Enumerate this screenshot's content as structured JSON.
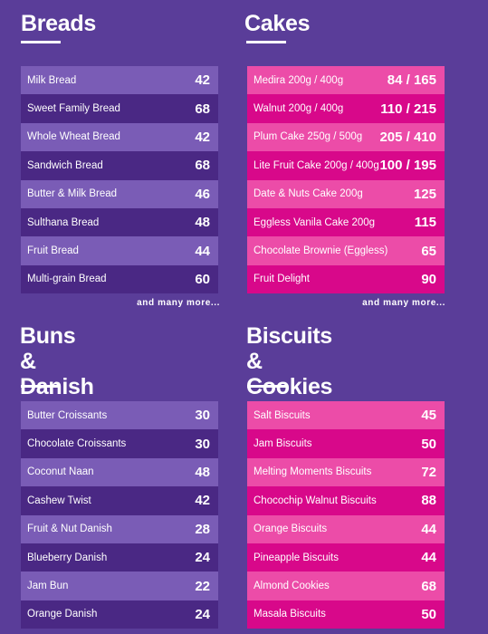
{
  "breads": {
    "title": "Breads",
    "items": [
      {
        "name": "Milk Bread",
        "price": "42"
      },
      {
        "name": "Sweet Family Bread",
        "price": "68"
      },
      {
        "name": "Whole Wheat Bread",
        "price": "42"
      },
      {
        "name": "Sandwich Bread",
        "price": "68"
      },
      {
        "name": "Butter & Milk Bread",
        "price": "46"
      },
      {
        "name": "Sulthana Bread",
        "price": "48"
      },
      {
        "name": "Fruit Bread",
        "price": "44"
      },
      {
        "name": "Multi-grain Bread",
        "price": "60"
      }
    ],
    "more": "and many more..."
  },
  "cakes": {
    "title": "Cakes",
    "items": [
      {
        "name": "Medira 200g / 400g",
        "price": "84 / 165"
      },
      {
        "name": "Walnut 200g / 400g",
        "price": "110 / 215"
      },
      {
        "name": "Plum Cake 250g / 500g",
        "price": "205 / 410"
      },
      {
        "name": "Lite Fruit Cake 200g / 400g",
        "price": "100 / 195"
      },
      {
        "name": "Date & Nuts Cake 200g",
        "price": "125"
      },
      {
        "name": "Eggless Vanila Cake 200g",
        "price": "115"
      },
      {
        "name": "Chocolate Brownie (Eggless)",
        "price": "65"
      },
      {
        "name": "Fruit Delight",
        "price": "90"
      }
    ],
    "more": "and many more..."
  },
  "buns": {
    "title_line1": "Buns &",
    "title_line2": "Danish",
    "items": [
      {
        "name": "Butter Croissants",
        "price": "30"
      },
      {
        "name": "Chocolate Croissants",
        "price": "30"
      },
      {
        "name": "Coconut Naan",
        "price": "48"
      },
      {
        "name": "Cashew Twist",
        "price": "42"
      },
      {
        "name": "Fruit & Nut Danish",
        "price": "28"
      },
      {
        "name": "Blueberry Danish",
        "price": "24"
      },
      {
        "name": "Jam Bun",
        "price": "22"
      },
      {
        "name": "Orange Danish",
        "price": "24"
      }
    ]
  },
  "biscuits": {
    "title_line1": "Biscuits &",
    "title_line2": "Cookies",
    "items": [
      {
        "name": "Salt Biscuits",
        "price": "45"
      },
      {
        "name": "Jam Biscuits",
        "price": "50"
      },
      {
        "name": "Melting Moments Biscuits",
        "price": "72"
      },
      {
        "name": "Chocochip Walnut Biscuits",
        "price": "88"
      },
      {
        "name": "Orange Biscuits",
        "price": "44"
      },
      {
        "name": "Pineapple Biscuits",
        "price": "44"
      },
      {
        "name": "Almond Cookies",
        "price": "68"
      },
      {
        "name": "Masala Biscuits",
        "price": "50"
      }
    ]
  },
  "colors": {
    "background": "#5a3d99",
    "purple_light": "#7a5cb6",
    "purple_dark": "#4a2884",
    "pink_light": "#ec4ca8",
    "pink_dark": "#d8088a"
  }
}
